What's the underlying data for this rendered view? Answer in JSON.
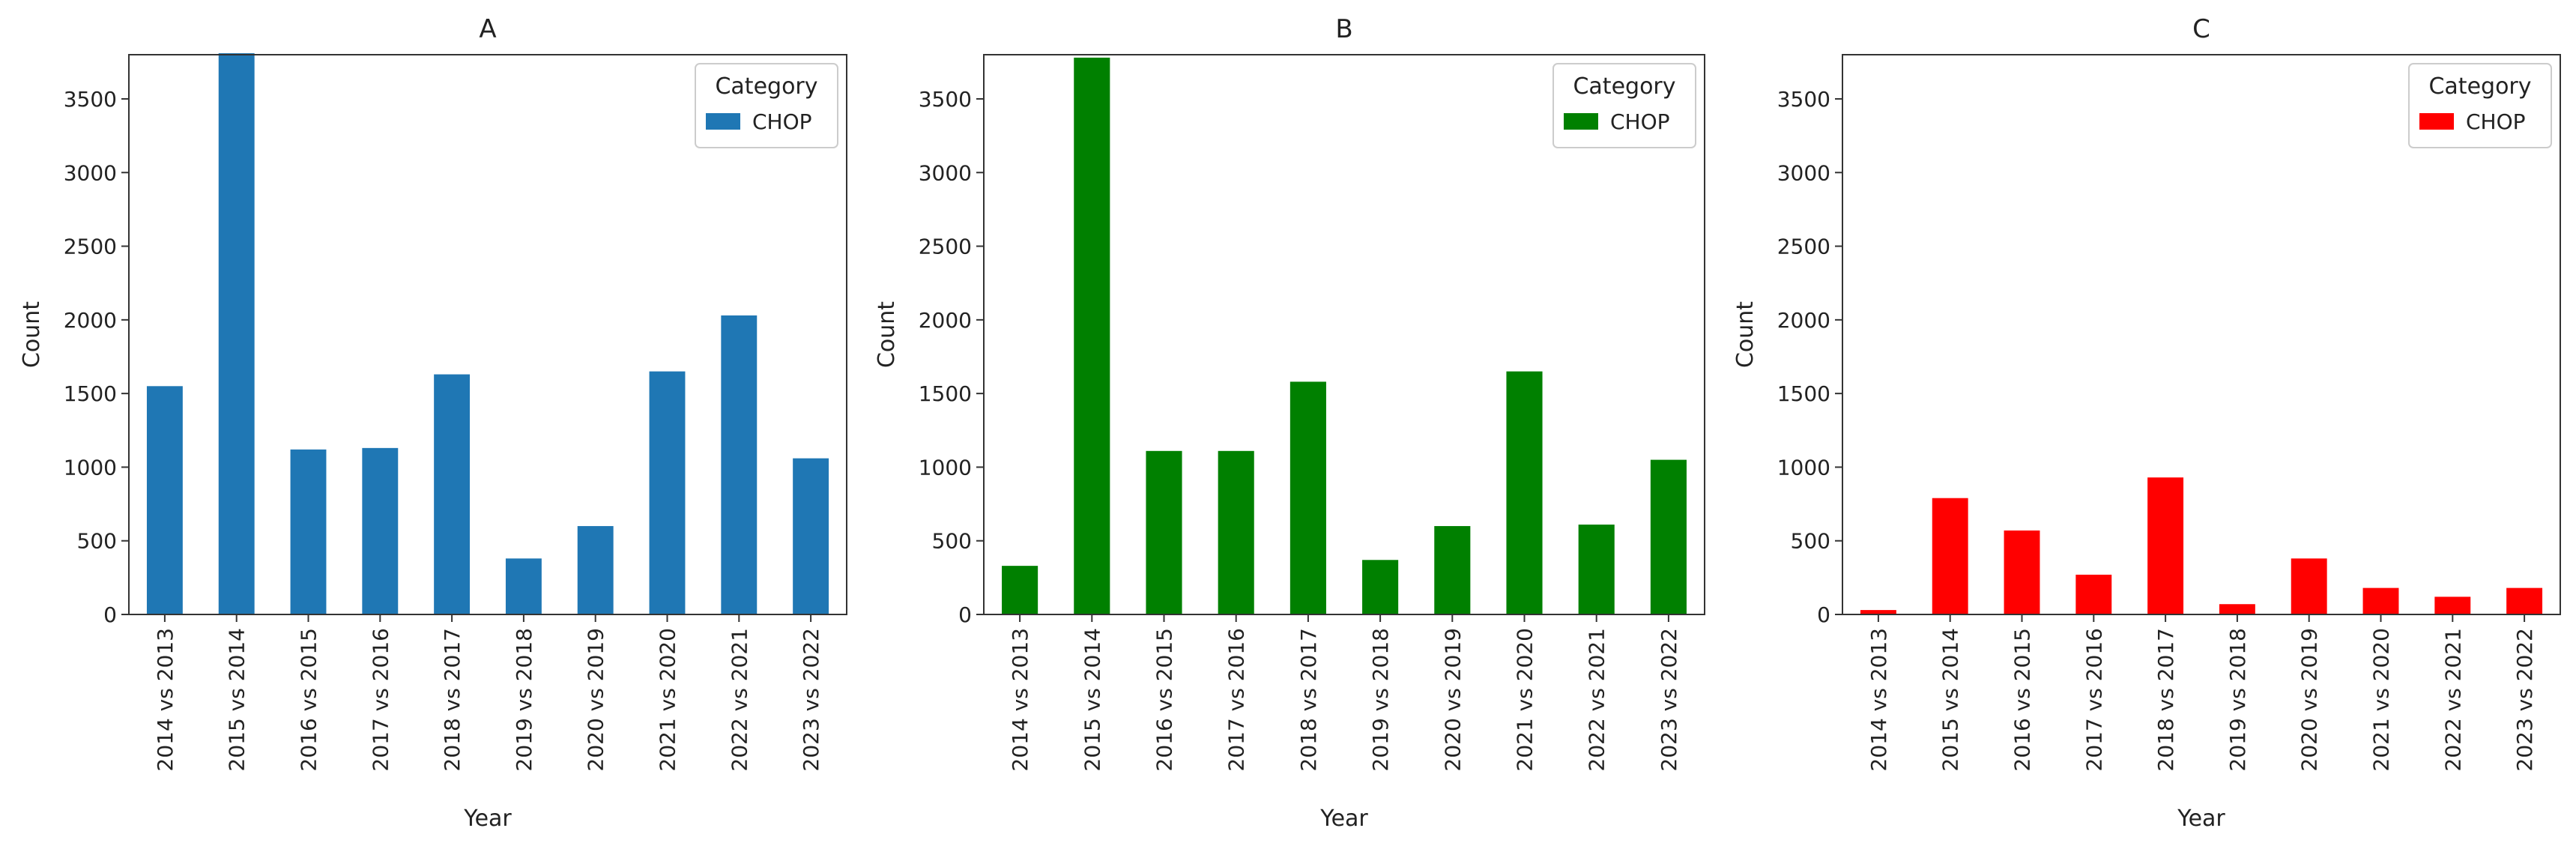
{
  "chart_data": [
    {
      "type": "bar",
      "title": "A",
      "xlabel": "Year",
      "ylabel": "Count",
      "ylim": [
        0,
        3800
      ],
      "yticks": [
        0,
        500,
        1000,
        1500,
        2000,
        2500,
        3000,
        3500
      ],
      "grid": false,
      "legend_title": "Category",
      "legend_position": "top-right",
      "color": "#1f77b4",
      "categories": [
        "2014 vs 2013",
        "2015 vs 2014",
        "2016 vs 2015",
        "2017 vs 2016",
        "2018 vs 2017",
        "2019 vs 2018",
        "2020 vs 2019",
        "2021 vs 2020",
        "2022 vs 2021",
        "2023 vs 2022"
      ],
      "series": [
        {
          "name": "CHOP",
          "values": [
            1550,
            3810,
            1120,
            1130,
            1630,
            380,
            600,
            1650,
            2030,
            1060
          ]
        }
      ]
    },
    {
      "type": "bar",
      "title": "B",
      "xlabel": "Year",
      "ylabel": "Count",
      "ylim": [
        0,
        3800
      ],
      "yticks": [
        0,
        500,
        1000,
        1500,
        2000,
        2500,
        3000,
        3500
      ],
      "grid": false,
      "legend_title": "Category",
      "legend_position": "top-right",
      "color": "#008000",
      "categories": [
        "2014 vs 2013",
        "2015 vs 2014",
        "2016 vs 2015",
        "2017 vs 2016",
        "2018 vs 2017",
        "2019 vs 2018",
        "2020 vs 2019",
        "2021 vs 2020",
        "2022 vs 2021",
        "2023 vs 2022"
      ],
      "series": [
        {
          "name": "CHOP",
          "values": [
            330,
            3780,
            1110,
            1110,
            1580,
            370,
            600,
            1650,
            610,
            1050
          ]
        }
      ]
    },
    {
      "type": "bar",
      "title": "C",
      "xlabel": "Year",
      "ylabel": "Count",
      "ylim": [
        0,
        3800
      ],
      "yticks": [
        0,
        500,
        1000,
        1500,
        2000,
        2500,
        3000,
        3500
      ],
      "grid": false,
      "legend_title": "Category",
      "legend_position": "top-right",
      "color": "#ff0000",
      "categories": [
        "2014 vs 2013",
        "2015 vs 2014",
        "2016 vs 2015",
        "2017 vs 2016",
        "2018 vs 2017",
        "2019 vs 2018",
        "2020 vs 2019",
        "2021 vs 2020",
        "2022 vs 2021",
        "2023 vs 2022"
      ],
      "series": [
        {
          "name": "CHOP",
          "values": [
            30,
            790,
            570,
            270,
            930,
            70,
            380,
            180,
            120,
            180
          ]
        }
      ]
    }
  ]
}
